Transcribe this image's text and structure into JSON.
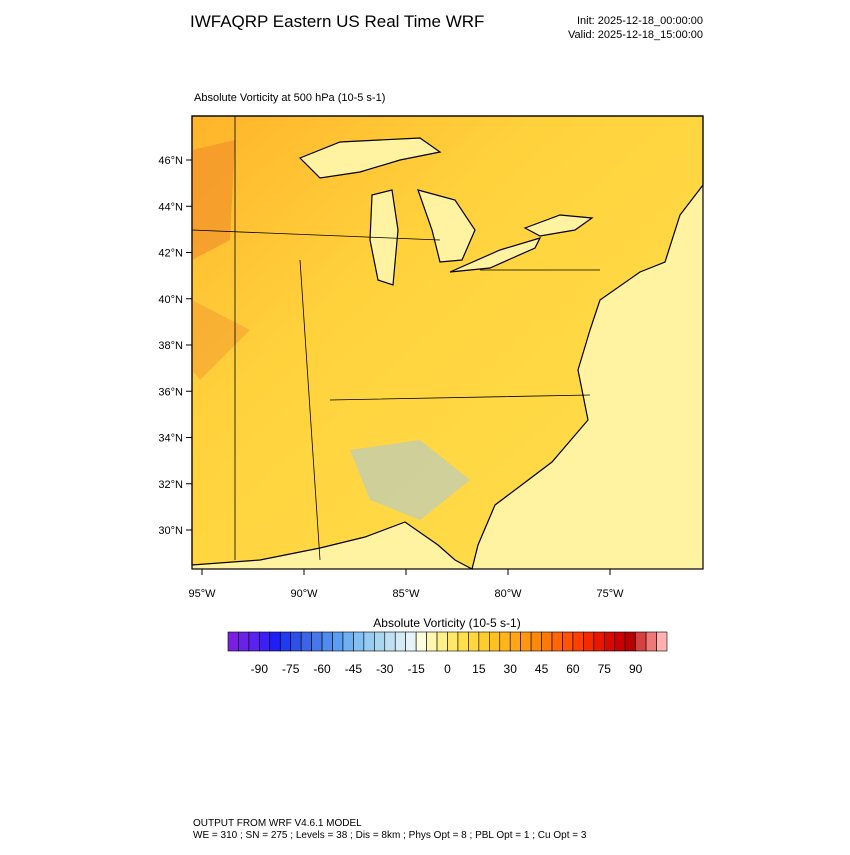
{
  "header": {
    "title": "IWFAQRP Eastern US Real Time WRF",
    "init": "Init: 2025-12-18_00:00:00",
    "valid": "Valid: 2025-12-18_15:00:00"
  },
  "map": {
    "subtitle": "Absolute Vorticity at 500 hPa   (10-5 s-1)",
    "lat_labels": [
      "46°N",
      "44°N",
      "42°N",
      "40°N",
      "38°N",
      "36°N",
      "34°N",
      "32°N",
      "30°N"
    ],
    "lon_labels": [
      "95°W",
      "90°W",
      "85°W",
      "80°W",
      "75°W"
    ]
  },
  "colorbar": {
    "title": "Absolute Vorticity  (10-5 s-1)",
    "labels": [
      "-90",
      "-75",
      "-60",
      "-45",
      "-30",
      "-15",
      "0",
      "15",
      "30",
      "45",
      "60",
      "75",
      "90"
    ],
    "colors": [
      "#7a1fe0",
      "#6a22e8",
      "#5a22f0",
      "#3c1ff5",
      "#1f1ff5",
      "#1f3cf0",
      "#2f50e8",
      "#3c64e8",
      "#4678ea",
      "#508cee",
      "#5a9ff2",
      "#6eb0f2",
      "#82c0f2",
      "#96ccf0",
      "#aad6f0",
      "#bee0f2",
      "#d2ebf5",
      "#e6f3fa",
      "#fffde0",
      "#fff6b0",
      "#fff08a",
      "#ffe866",
      "#ffe04a",
      "#ffd83c",
      "#ffcc2e",
      "#ffc020",
      "#ffb41a",
      "#ffa614",
      "#ff9810",
      "#ff880c",
      "#ff7808",
      "#ff6606",
      "#ff5404",
      "#ff4002",
      "#f52a00",
      "#e81800",
      "#d80a00",
      "#c80000",
      "#b80000",
      "#d84040",
      "#f07878",
      "#ffb0b0"
    ]
  },
  "footer": {
    "line1": "OUTPUT FROM WRF V4.6.1 MODEL",
    "line2": "WE = 310 ; SN = 275 ; Levels = 38 ; Dis = 8km ; Phys Opt = 8 ; PBL Opt = 1 ; Cu Opt = 3"
  }
}
